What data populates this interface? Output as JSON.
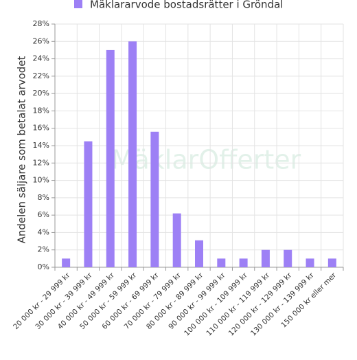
{
  "chart_data": {
    "type": "bar",
    "legend_label": "Mäklararvode bostadsrätter i Gröndal",
    "y_label": "Andelen säljare som betalat arvodet",
    "watermark": "MäklarOfferter",
    "categories": [
      "20 000 kr - 29 999 kr",
      "30 000 kr - 39 999 kr",
      "40 000 kr - 49 999 kr",
      "50 000 kr - 59 999 kr",
      "60 000 kr - 69 999 kr",
      "70 000 kr - 79 999 kr",
      "80 000 kr - 89 999 kr",
      "90 000 kr - 99 999 kr",
      "100 000 kr - 109 999 kr",
      "110 000 kr - 119 999 kr",
      "120 000 kr - 129 999 kr",
      "130 000 kr - 139 999 kr",
      "150 000 kr eller mer"
    ],
    "values": [
      1,
      14.5,
      25,
      26,
      15.6,
      6.2,
      3.1,
      1,
      1,
      2,
      2,
      1,
      1
    ],
    "color": "#9d80f5",
    "ylim": [
      0,
      28
    ],
    "yticks": [
      {
        "value": 0,
        "label": "0%"
      },
      {
        "value": 2,
        "label": "2%"
      },
      {
        "value": 4,
        "label": "4%"
      },
      {
        "value": 6,
        "label": "6%"
      },
      {
        "value": 8,
        "label": "8%"
      },
      {
        "value": 10,
        "label": "10%"
      },
      {
        "value": 12,
        "label": "12%"
      },
      {
        "value": 14,
        "label": "14%"
      },
      {
        "value": 16,
        "label": "16%"
      },
      {
        "value": 18,
        "label": "18%"
      },
      {
        "value": 20,
        "label": "20%"
      },
      {
        "value": 22,
        "label": "22%"
      },
      {
        "value": 24,
        "label": "24%"
      },
      {
        "value": 26,
        "label": "26%"
      },
      {
        "value": 28,
        "label": "28%"
      }
    ],
    "grid": true
  }
}
